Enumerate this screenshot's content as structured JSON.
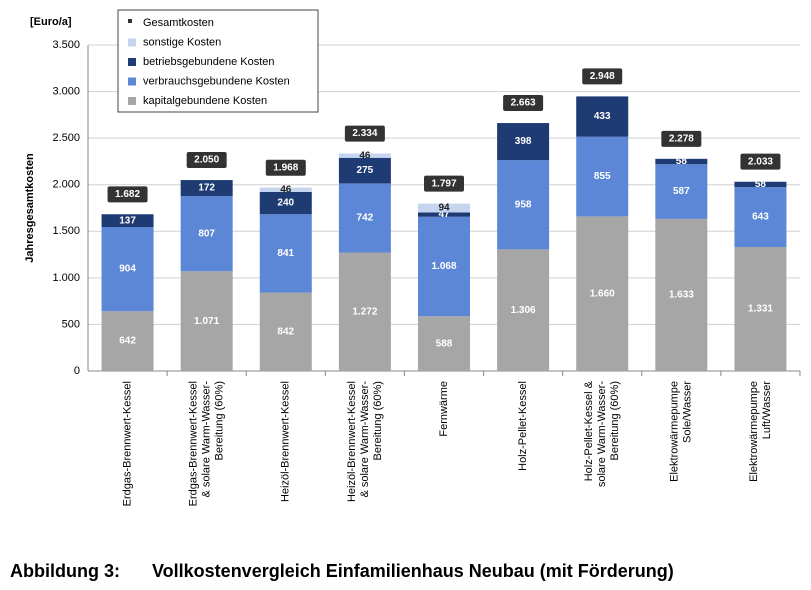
{
  "chart_data": {
    "type": "stacked-bar",
    "y_unit": "[Euro/a]",
    "y_label": "Jahresgesamtkosten",
    "caption_number": "Abbildung 3:",
    "caption": "Vollkostenvergleich Einfamilienhaus Neubau (mit Förderung)",
    "categories": [
      [
        "Erdgas-Brennwert-Kessel"
      ],
      [
        "Erdgas-Brennwert-Kessel",
        "& solare Warm-Wasser-",
        "Bereitung (60%)"
      ],
      [
        "Heizöl-Brennwert-Kessel"
      ],
      [
        "Heizöl-Brennwert-Kessel",
        "& solare Warm-Wasser-",
        "Bereitung (60%)"
      ],
      [
        "Fernwärme"
      ],
      [
        "Holz-Pellet-Kessel"
      ],
      [
        "Holz-Pellet-Kessel &",
        "solare Warm-Wasser-",
        "Bereitung (60%)"
      ],
      [
        "Elektrowärmepumpe",
        "Sole/Wasser"
      ],
      [
        "Elektrowärmepumpe",
        "Luft/Wasser"
      ]
    ],
    "series": [
      {
        "name": "kapitalgebundene Kosten",
        "color": "#a6a6a6",
        "values": [
          642,
          1071,
          842,
          1272,
          588,
          1306,
          1660,
          1633,
          1331
        ],
        "value_labels": [
          "642",
          "1.071",
          "842",
          "1.272",
          "588",
          "1.306",
          "1.660",
          "1.633",
          "1.331"
        ]
      },
      {
        "name": "verbrauchsgebundene Kosten",
        "color": "#5b87d6",
        "values": [
          904,
          807,
          841,
          742,
          1068,
          958,
          855,
          587,
          643
        ],
        "value_labels": [
          "904",
          "807",
          "841",
          "742",
          "1.068",
          "958",
          "855",
          "587",
          "643"
        ]
      },
      {
        "name": "betriebsgebundene  Kosten",
        "color": "#1f3b73",
        "values": [
          137,
          172,
          240,
          275,
          47,
          398,
          433,
          58,
          58
        ]
      },
      {
        "name": "sonstige Kosten",
        "color": "#c5d5ef",
        "values": [
          null,
          null,
          46,
          46,
          94,
          null,
          null,
          null,
          null
        ]
      }
    ],
    "total": {
      "name": "Gesamtkosten",
      "color": "#333333",
      "values": [
        1682,
        2050,
        1968,
        2334,
        1797,
        2663,
        2948,
        2278,
        2033
      ],
      "value_labels": [
        "1.682",
        "2.050",
        "1.968",
        "2.334",
        "1.797",
        "2.663",
        "2.948",
        "2.278",
        "2.033"
      ]
    },
    "ylim": [
      0,
      3500
    ],
    "yticks": [
      0,
      500,
      {
        "value": 1000,
        "label": "1.000"
      },
      {
        "value": 1500,
        "label": "1.500"
      },
      {
        "value": 2000,
        "label": "2.000"
      },
      {
        "value": 2500,
        "label": "2.500"
      },
      {
        "value": 3000,
        "label": "3.000"
      },
      {
        "value": 3500,
        "label": "3.500"
      }
    ],
    "grid": true
  }
}
